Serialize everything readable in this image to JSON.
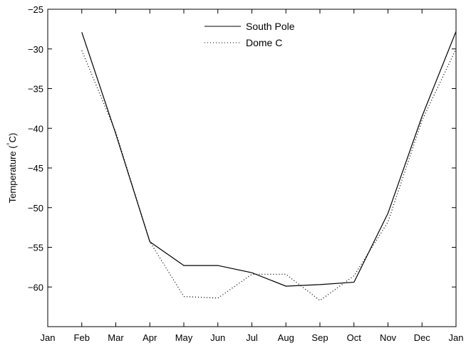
{
  "chart_data": {
    "type": "line",
    "categories": [
      "Jan",
      "Feb",
      "Mar",
      "Apr",
      "May",
      "Jun",
      "Jul",
      "Aug",
      "Sep",
      "Oct",
      "Nov",
      "Dec",
      "Jan"
    ],
    "ylabel": "Temperature (°C)",
    "ylabel_main": "Temperature (",
    "ylabel_degree": "°",
    "ylabel_unit": "C)",
    "ylim": [
      -65,
      -25
    ],
    "yticks": [
      -25,
      -30,
      -35,
      -40,
      -45,
      -50,
      -55,
      -60
    ],
    "ytick_labels": [
      "−25",
      "−30",
      "−35",
      "−40",
      "−45",
      "−50",
      "−55",
      "−60"
    ],
    "grid": false,
    "legend_position": "top-center",
    "series": [
      {
        "name": "South Pole",
        "style": "solid",
        "color": "#000000",
        "x": [
          1,
          2,
          3,
          4,
          5,
          6,
          7,
          8,
          9,
          10,
          11,
          12
        ],
        "values": [
          -27.9,
          -40.7,
          -54.3,
          -57.3,
          -57.3,
          -58.2,
          -59.9,
          -59.7,
          -59.4,
          -50.7,
          -38.5,
          -27.8
        ]
      },
      {
        "name": "Dome C",
        "style": "dotted",
        "color": "#000000",
        "x": [
          1,
          2,
          3,
          4,
          5,
          6,
          7,
          8,
          9,
          10,
          11,
          12
        ],
        "values": [
          -30.2,
          -40.5,
          -54.3,
          -61.2,
          -61.4,
          -58.4,
          -58.4,
          -61.7,
          -58.6,
          -51.8,
          -39.0,
          -30.0
        ]
      }
    ]
  }
}
